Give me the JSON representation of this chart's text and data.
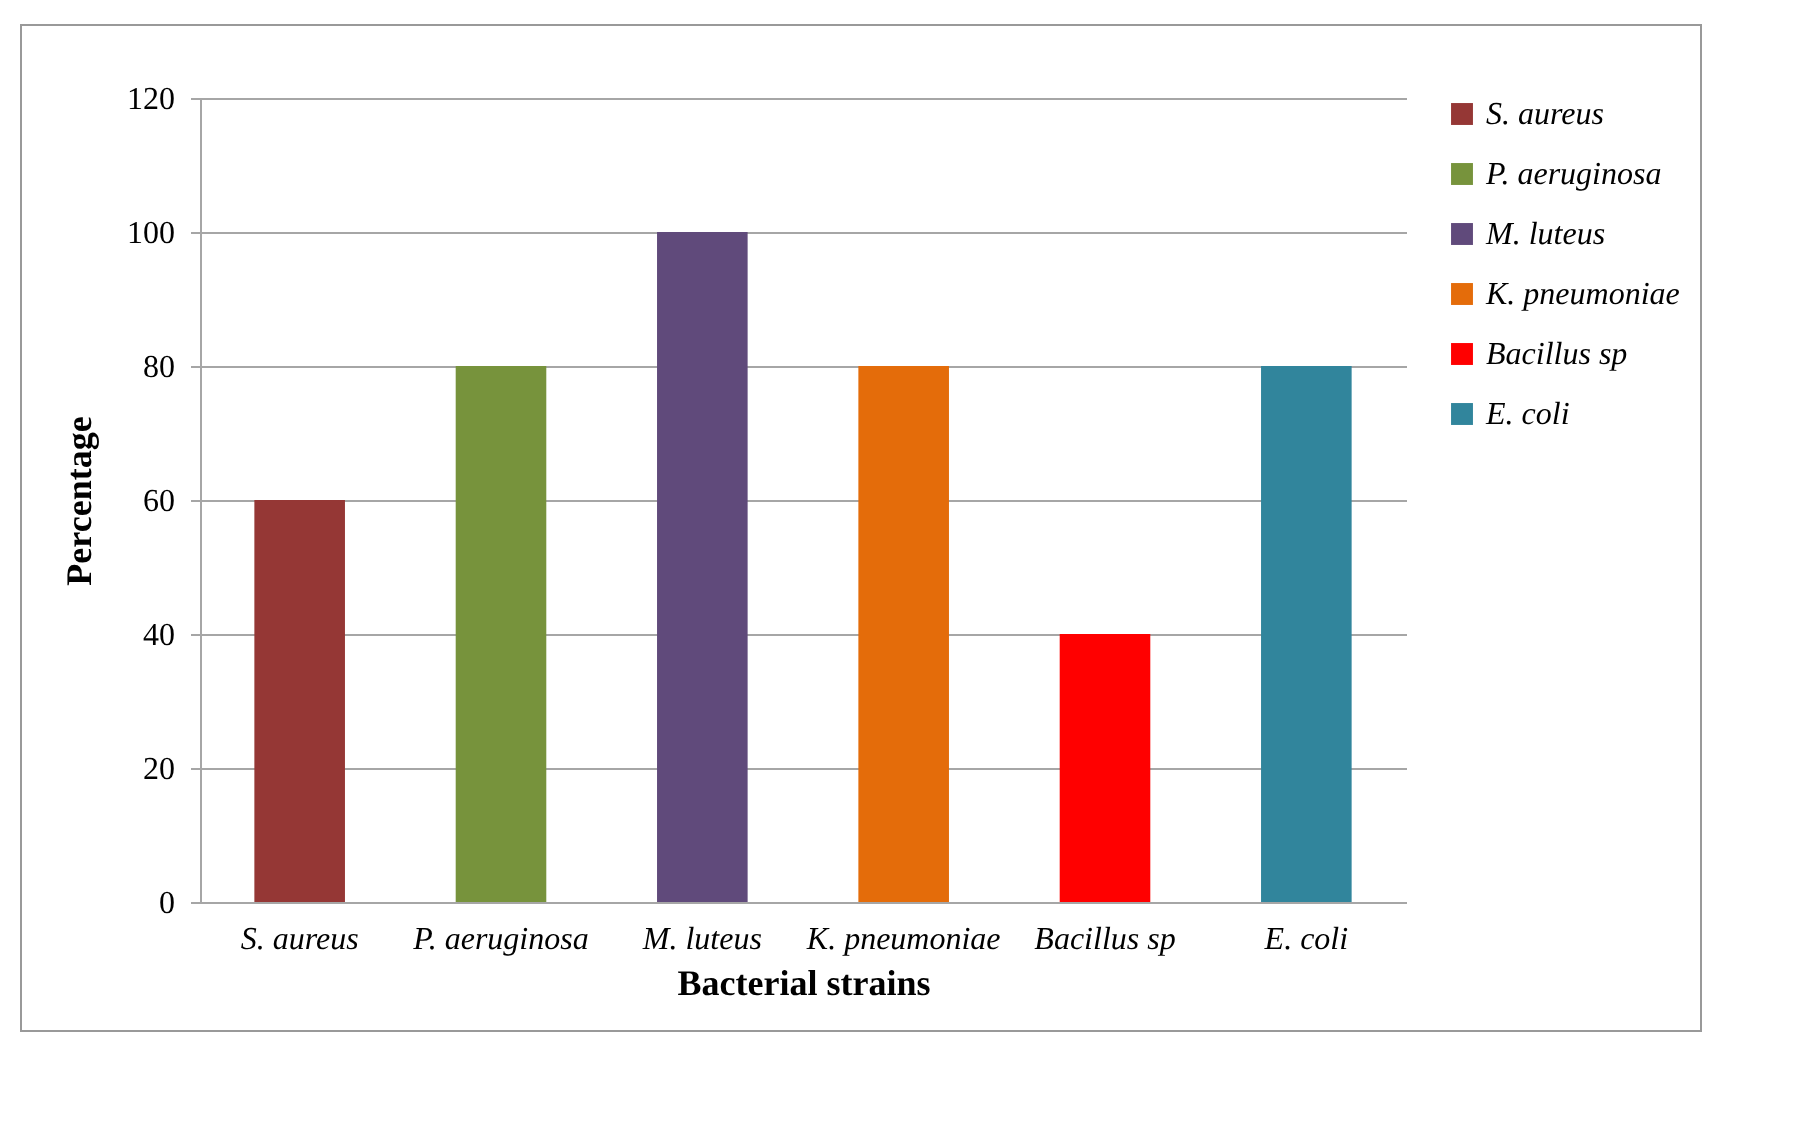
{
  "chart_data": {
    "type": "bar",
    "xlabel": "Bacterial strains",
    "ylabel": "Percentage",
    "categories": [
      "S. aureus",
      "P. aeruginosa",
      "M. luteus",
      "K. pneumoniae",
      "Bacillus sp",
      "E. coli"
    ],
    "series": [
      {
        "name": "S. aureus",
        "color": "#953735",
        "values": [
          60,
          null,
          null,
          null,
          null,
          null
        ]
      },
      {
        "name": "P. aeruginosa",
        "color": "#77933c",
        "values": [
          null,
          80,
          null,
          null,
          null,
          null
        ]
      },
      {
        "name": "M. luteus",
        "color": "#604a7b",
        "values": [
          null,
          null,
          100,
          null,
          null,
          null
        ]
      },
      {
        "name": "K. pneumoniae",
        "color": "#e46c0a",
        "values": [
          null,
          null,
          null,
          80,
          null,
          null
        ]
      },
      {
        "name": "Bacillus sp",
        "color": "#ff0000",
        "values": [
          null,
          null,
          null,
          null,
          40,
          null
        ]
      },
      {
        "name": "E. coli",
        "color": "#31859c",
        "values": [
          null,
          null,
          null,
          null,
          null,
          80
        ]
      }
    ],
    "ylim": [
      0,
      120
    ],
    "yticks": [
      0,
      20,
      40,
      60,
      80,
      100,
      120
    ],
    "grid": "y",
    "legend": "right"
  }
}
